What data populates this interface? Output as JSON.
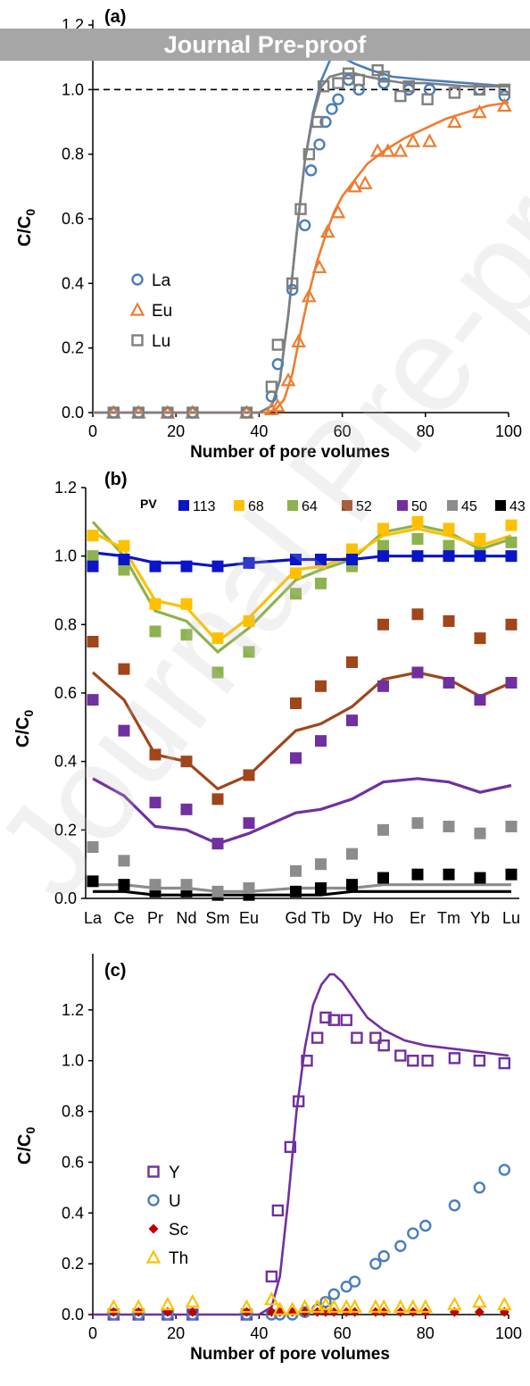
{
  "banner": "Journal Pre-proof",
  "watermark": "Journal Pre-proof",
  "chart_data": [
    {
      "panel": "(a)",
      "type": "scatter",
      "xlabel": "Number of pore volumes",
      "ylabel": "C/C0",
      "xlim": [
        0,
        100
      ],
      "ylim": [
        0,
        1.2
      ],
      "xticks": [
        0,
        20,
        40,
        60,
        80,
        100
      ],
      "yticks": [
        0.0,
        0.2,
        0.4,
        0.6,
        0.8,
        1.0,
        1.2
      ],
      "reference_line": 1.0,
      "legend_position": "middle-left",
      "series": [
        {
          "name": "La",
          "marker": "circle",
          "color": "#4a7ebb",
          "x": [
            5,
            11,
            18,
            24,
            37,
            43,
            44.5,
            48,
            51,
            52.5,
            54.5,
            56,
            57.5,
            59,
            61.5,
            64,
            70,
            76,
            81,
            93,
            99
          ],
          "y": [
            0,
            0,
            0,
            0,
            0,
            0.05,
            0.15,
            0.38,
            0.58,
            0.75,
            0.83,
            0.9,
            0.94,
            0.97,
            1.03,
            1.0,
            1.02,
            1.0,
            1.0,
            1.0,
            0.98
          ],
          "fit_x": [
            0,
            40,
            43,
            45,
            47,
            49,
            51,
            53,
            55,
            57,
            58,
            60,
            63,
            67,
            72,
            80,
            90,
            100
          ],
          "fit_y": [
            0,
            0,
            0.02,
            0.1,
            0.3,
            0.55,
            0.78,
            0.93,
            1.03,
            1.09,
            1.11,
            1.1,
            1.08,
            1.06,
            1.04,
            1.03,
            1.02,
            1.01
          ]
        },
        {
          "name": "Eu",
          "marker": "triangle",
          "color": "#ed7d31",
          "x": [
            5,
            11,
            18,
            24,
            37,
            43,
            44.5,
            47,
            49.5,
            52,
            54.5,
            56.5,
            59,
            63,
            65.5,
            68.5,
            71,
            74,
            77,
            81,
            87,
            93,
            99
          ],
          "y": [
            0,
            0,
            0,
            0,
            0,
            0.01,
            0.02,
            0.1,
            0.22,
            0.36,
            0.45,
            0.56,
            0.62,
            0.7,
            0.71,
            0.81,
            0.81,
            0.81,
            0.84,
            0.84,
            0.9,
            0.93,
            0.95
          ],
          "fit_x": [
            0,
            42,
            44,
            46,
            48,
            50,
            52,
            54,
            56,
            58,
            60,
            63,
            66,
            70,
            75,
            80,
            85,
            90,
            95,
            100
          ],
          "fit_y": [
            0,
            0,
            0.01,
            0.04,
            0.12,
            0.25,
            0.37,
            0.47,
            0.55,
            0.62,
            0.67,
            0.72,
            0.77,
            0.81,
            0.85,
            0.88,
            0.91,
            0.93,
            0.95,
            0.96
          ]
        },
        {
          "name": "Lu",
          "marker": "square",
          "color": "#7f7f7f",
          "x": [
            5,
            11,
            18,
            24,
            37,
            43,
            44.5,
            48,
            50,
            52,
            54,
            55.5,
            59,
            61.5,
            64,
            68.5,
            70,
            74,
            76,
            80.5,
            87,
            93,
            99
          ],
          "y": [
            0,
            0,
            0,
            0,
            0,
            0.08,
            0.21,
            0.4,
            0.63,
            0.8,
            0.9,
            1.01,
            1.02,
            1.05,
            1.03,
            1.06,
            1.04,
            0.98,
            1.01,
            0.97,
            0.99,
            1.0,
            1.0
          ],
          "fit_x": [
            0,
            40,
            43,
            45,
            47,
            49,
            51,
            53,
            55,
            57,
            60,
            63,
            66,
            70,
            75,
            80,
            90,
            100
          ],
          "fit_y": [
            0,
            0,
            0.02,
            0.1,
            0.3,
            0.55,
            0.78,
            0.92,
            1.01,
            1.04,
            1.05,
            1.05,
            1.04,
            1.03,
            1.02,
            1.02,
            1.01,
            1.01
          ]
        }
      ]
    },
    {
      "panel": "(b)",
      "type": "line",
      "ylabel": "C/C0",
      "ylim": [
        0,
        1.2
      ],
      "yticks": [
        0.0,
        0.2,
        0.4,
        0.6,
        0.8,
        1.0,
        1.2
      ],
      "categories": [
        "La",
        "Ce",
        "Pr",
        "Nd",
        "Sm",
        "Eu",
        "Gd",
        "Tb",
        "Dy",
        "Ho",
        "Er",
        "Tm",
        "Yb",
        "Lu"
      ],
      "category_positions": [
        0,
        1,
        2,
        3,
        4,
        5,
        6.5,
        7.3,
        8.3,
        9.3,
        10.4,
        11.4,
        12.4,
        13.4
      ],
      "legend_title": "PV",
      "legend_position": "top",
      "series": [
        {
          "name": "113",
          "color": "#0a14c8",
          "points": [
            0.97,
            0.99,
            0.97,
            0.97,
            0.97,
            0.98,
            0.99,
            0.99,
            0.99,
            1.0,
            1.0,
            1.0,
            1.0,
            1.0
          ],
          "model": [
            1.01,
            1.0,
            0.98,
            0.98,
            0.97,
            0.98,
            0.99,
            0.99,
            0.99,
            1.0,
            1.0,
            1.0,
            1.0,
            1.0
          ]
        },
        {
          "name": "68",
          "color": "#ffc000",
          "points": [
            1.06,
            1.03,
            0.86,
            0.86,
            0.76,
            0.81,
            0.95,
            0.98,
            1.02,
            1.08,
            1.1,
            1.08,
            1.05,
            1.09
          ],
          "model": [
            1.07,
            1.02,
            0.87,
            0.85,
            0.75,
            0.82,
            0.96,
            0.97,
            1.0,
            1.06,
            1.08,
            1.06,
            1.03,
            1.06
          ]
        },
        {
          "name": "64",
          "color": "#8db24e",
          "points": [
            1.0,
            0.96,
            0.78,
            0.77,
            0.66,
            0.72,
            0.89,
            0.92,
            0.97,
            1.03,
            1.05,
            1.03,
            1.01,
            1.04
          ],
          "model": [
            1.1,
            1.0,
            0.84,
            0.81,
            0.72,
            0.79,
            0.93,
            0.96,
            0.99,
            1.07,
            1.09,
            1.07,
            1.02,
            1.05
          ]
        },
        {
          "name": "52",
          "color": "#a0461a",
          "points": [
            0.75,
            0.67,
            0.42,
            0.4,
            0.29,
            0.36,
            0.57,
            0.62,
            0.69,
            0.8,
            0.83,
            0.81,
            0.76,
            0.8
          ],
          "model": [
            0.66,
            0.58,
            0.42,
            0.4,
            0.32,
            0.36,
            0.49,
            0.51,
            0.56,
            0.64,
            0.66,
            0.64,
            0.59,
            0.63
          ]
        },
        {
          "name": "50",
          "color": "#7030a0",
          "points": [
            0.58,
            0.49,
            0.28,
            0.26,
            0.16,
            0.22,
            0.41,
            0.46,
            0.52,
            0.62,
            0.66,
            0.63,
            0.58,
            0.63
          ],
          "model": [
            0.35,
            0.3,
            0.21,
            0.2,
            0.16,
            0.19,
            0.25,
            0.26,
            0.29,
            0.34,
            0.35,
            0.34,
            0.31,
            0.33
          ]
        },
        {
          "name": "45",
          "color": "#8c8c8c",
          "points": [
            0.15,
            0.11,
            0.04,
            0.04,
            0.02,
            0.03,
            0.08,
            0.1,
            0.13,
            0.2,
            0.22,
            0.21,
            0.19,
            0.21
          ],
          "model": [
            0.04,
            0.04,
            0.03,
            0.03,
            0.02,
            0.02,
            0.03,
            0.03,
            0.03,
            0.04,
            0.04,
            0.04,
            0.04,
            0.04
          ]
        },
        {
          "name": "43",
          "color": "#000000",
          "points": [
            0.05,
            0.04,
            0.02,
            0.02,
            0.01,
            0.01,
            0.02,
            0.03,
            0.04,
            0.06,
            0.07,
            0.07,
            0.06,
            0.07
          ],
          "model": [
            0.02,
            0.02,
            0.01,
            0.01,
            0.01,
            0.01,
            0.01,
            0.01,
            0.02,
            0.02,
            0.02,
            0.02,
            0.02,
            0.02
          ]
        }
      ]
    },
    {
      "panel": "(c)",
      "type": "scatter",
      "xlabel": "Number of pore volumes",
      "ylabel": "C/C0",
      "xlim": [
        0,
        100
      ],
      "ylim": [
        0,
        1.4
      ],
      "xticks": [
        0,
        20,
        40,
        60,
        80,
        100
      ],
      "yticks": [
        0.0,
        0.2,
        0.4,
        0.6,
        0.8,
        1.0,
        1.2
      ],
      "legend_position": "lower-left",
      "series": [
        {
          "name": "Y",
          "marker": "square",
          "color": "#7030a0",
          "x": [
            5,
            11,
            18,
            24,
            37,
            43,
            44.5,
            47.5,
            49.5,
            51.5,
            54,
            56,
            58,
            61,
            63.5,
            68,
            70,
            74,
            77,
            80.5,
            87,
            93,
            99
          ],
          "y": [
            0,
            0,
            0,
            0,
            0,
            0.15,
            0.41,
            0.66,
            0.84,
            1.0,
            1.09,
            1.17,
            1.16,
            1.16,
            1.09,
            1.09,
            1.06,
            1.02,
            1.0,
            1.0,
            1.01,
            1.0,
            0.99
          ],
          "fit_x": [
            0,
            40,
            43,
            45,
            47,
            49,
            51,
            53,
            55,
            57,
            58,
            60,
            63,
            66,
            70,
            75,
            80,
            90,
            100
          ],
          "fit_y": [
            0,
            0,
            0.03,
            0.15,
            0.45,
            0.8,
            1.05,
            1.22,
            1.3,
            1.34,
            1.34,
            1.31,
            1.24,
            1.17,
            1.12,
            1.08,
            1.06,
            1.04,
            1.02
          ]
        },
        {
          "name": "U",
          "marker": "circle",
          "color": "#4a7ebb",
          "x": [
            5,
            11,
            18,
            24,
            37,
            43,
            45,
            48,
            51,
            54,
            56,
            58,
            61,
            63,
            68,
            70,
            74,
            77,
            80,
            87,
            93,
            99
          ],
          "y": [
            0,
            0,
            0,
            0,
            0,
            0,
            0,
            0,
            0.01,
            0.02,
            0.05,
            0.08,
            0.11,
            0.13,
            0.2,
            0.23,
            0.27,
            0.32,
            0.35,
            0.43,
            0.5,
            0.57
          ]
        },
        {
          "name": "Sc",
          "marker": "diamond",
          "color": "#c00000",
          "x": [
            5,
            11,
            18,
            24,
            37,
            43,
            45,
            48,
            51,
            54,
            56,
            58,
            61,
            63,
            68,
            70,
            74,
            77,
            80,
            87,
            93,
            99
          ],
          "y": [
            0.01,
            0.01,
            0.01,
            0.01,
            0.01,
            0.01,
            0.01,
            0.01,
            0.01,
            0.01,
            0.01,
            0.01,
            0.01,
            0.01,
            0.01,
            0.01,
            0.01,
            0.01,
            0.01,
            0.01,
            0.01,
            0.01
          ]
        },
        {
          "name": "Th",
          "marker": "triangle",
          "color": "#ffc000",
          "x": [
            5,
            11,
            18,
            24,
            37,
            43,
            45,
            48,
            51,
            54,
            56,
            58,
            61,
            63,
            68,
            70,
            74,
            77,
            80,
            87,
            93,
            99
          ],
          "y": [
            0.03,
            0.03,
            0.04,
            0.05,
            0.03,
            0.06,
            0.02,
            0.02,
            0.03,
            0.03,
            0.04,
            0.03,
            0.03,
            0.03,
            0.03,
            0.03,
            0.03,
            0.03,
            0.03,
            0.04,
            0.05,
            0.04
          ]
        }
      ]
    }
  ]
}
